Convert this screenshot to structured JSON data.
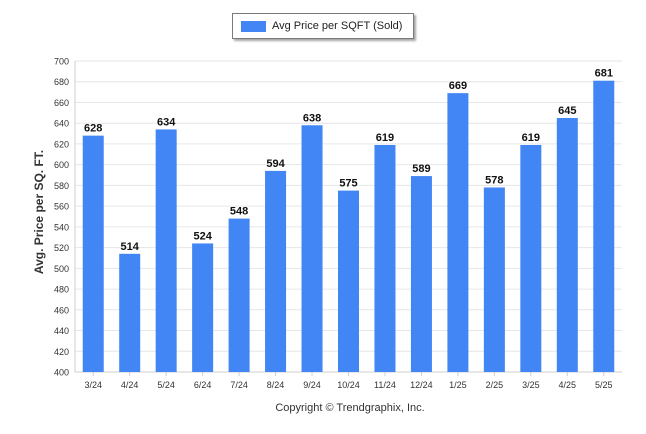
{
  "chart_data": {
    "type": "bar",
    "categories": [
      "3/24",
      "4/24",
      "5/24",
      "6/24",
      "7/24",
      "8/24",
      "9/24",
      "10/24",
      "11/24",
      "12/24",
      "1/25",
      "2/25",
      "3/25",
      "4/25",
      "5/25"
    ],
    "series": [
      {
        "name": "Avg Price per SQFT (Sold)",
        "values": [
          628,
          514,
          634,
          524,
          548,
          594,
          638,
          575,
          619,
          589,
          669,
          578,
          619,
          645,
          681
        ]
      }
    ],
    "ylabel": "Avg. Price per SQ. FT.",
    "ylim": [
      400,
      700
    ],
    "yticks": [
      400,
      420,
      440,
      460,
      480,
      500,
      520,
      540,
      560,
      580,
      600,
      620,
      640,
      660,
      680,
      700
    ],
    "grid": true,
    "legend_position": "top-center",
    "bar_color": "#4285f4"
  },
  "footer": {
    "copyright": "Copyright © Trendgraphix, Inc."
  }
}
